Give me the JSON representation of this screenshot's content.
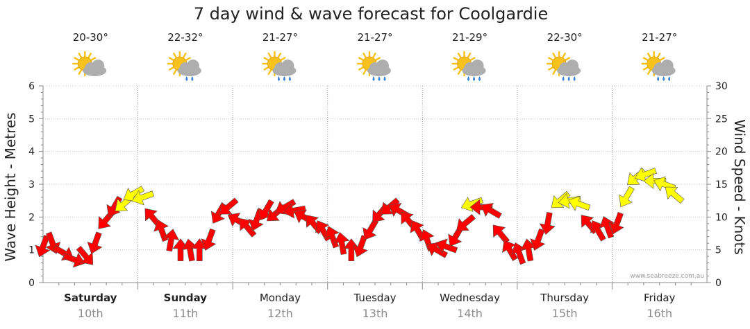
{
  "chart_data": {
    "type": "line",
    "title": "7 day wind & wave forecast for Coolgardie",
    "y_left": {
      "label": "Wave Height - Metres",
      "range": [
        0,
        6
      ],
      "ticks": [
        "0",
        "1",
        "2",
        "3",
        "4",
        "5",
        "6"
      ]
    },
    "y_right": {
      "label": "Wind Speed - Knots",
      "range": [
        0,
        30
      ],
      "ticks": [
        "0",
        "5",
        "10",
        "15",
        "20",
        "25",
        "30"
      ]
    },
    "grid": true,
    "days": [
      {
        "name": "Saturday",
        "date": "10th",
        "bold": true,
        "temp": "20-30°",
        "weather": "partly-cloudy-icon"
      },
      {
        "name": "Sunday",
        "date": "11th",
        "bold": true,
        "temp": "22-32°",
        "weather": "cloudy-drizzle-icon"
      },
      {
        "name": "Monday",
        "date": "12th",
        "bold": false,
        "temp": "21-27°",
        "weather": "shower-icon"
      },
      {
        "name": "Tuesday",
        "date": "13th",
        "bold": false,
        "temp": "21-27°",
        "weather": "shower-icon"
      },
      {
        "name": "Wednesday",
        "date": "14th",
        "bold": false,
        "temp": "21-29°",
        "weather": "shower-icon"
      },
      {
        "name": "Thursday",
        "date": "15th",
        "bold": false,
        "temp": "22-30°",
        "weather": "shower-icon"
      },
      {
        "name": "Friday",
        "date": "16th",
        "bold": false,
        "temp": "21-27°",
        "weather": "shower-icon"
      }
    ],
    "wind_series": {
      "name": "Wind Speed (knots)",
      "colors": {
        "light": "#ffff00",
        "strong": "#ff0000"
      },
      "points": [
        {
          "t": 0.0,
          "speed": 5.5,
          "dir": 200,
          "color": "red"
        },
        {
          "t": 0.1,
          "speed": 6.0,
          "dir": 160,
          "color": "red"
        },
        {
          "t": 0.22,
          "speed": 4.5,
          "dir": 120,
          "color": "red"
        },
        {
          "t": 0.33,
          "speed": 3.5,
          "dir": 110,
          "color": "red"
        },
        {
          "t": 0.45,
          "speed": 4.0,
          "dir": 140,
          "color": "red"
        },
        {
          "t": 0.55,
          "speed": 6.0,
          "dir": 200,
          "color": "red"
        },
        {
          "t": 0.66,
          "speed": 9.5,
          "dir": 220,
          "color": "red"
        },
        {
          "t": 0.75,
          "speed": 11.5,
          "dir": 210,
          "color": "red"
        },
        {
          "t": 0.85,
          "speed": 12.0,
          "dir": 230,
          "color": "yellow"
        },
        {
          "t": 0.95,
          "speed": 13.5,
          "dir": 240,
          "color": "yellow"
        },
        {
          "t": 1.05,
          "speed": 13.0,
          "dir": 250,
          "color": "yellow"
        },
        {
          "t": 1.15,
          "speed": 10.0,
          "dir": 320,
          "color": "red"
        },
        {
          "t": 1.25,
          "speed": 8.0,
          "dir": 340,
          "color": "red"
        },
        {
          "t": 1.35,
          "speed": 6.5,
          "dir": 10,
          "color": "red"
        },
        {
          "t": 1.45,
          "speed": 5.0,
          "dir": 0,
          "color": "red"
        },
        {
          "t": 1.55,
          "speed": 5.0,
          "dir": 350,
          "color": "red"
        },
        {
          "t": 1.65,
          "speed": 5.0,
          "dir": 0,
          "color": "red"
        },
        {
          "t": 1.75,
          "speed": 6.5,
          "dir": 200,
          "color": "red"
        },
        {
          "t": 1.85,
          "speed": 10.5,
          "dir": 210,
          "color": "red"
        },
        {
          "t": 1.95,
          "speed": 11.5,
          "dir": 230,
          "color": "red"
        },
        {
          "t": 2.05,
          "speed": 9.5,
          "dir": 300,
          "color": "red"
        },
        {
          "t": 2.15,
          "speed": 8.5,
          "dir": 320,
          "color": "red"
        },
        {
          "t": 2.25,
          "speed": 9.5,
          "dir": 200,
          "color": "red"
        },
        {
          "t": 2.35,
          "speed": 11.0,
          "dir": 210,
          "color": "red"
        },
        {
          "t": 2.45,
          "speed": 10.5,
          "dir": 230,
          "color": "red"
        },
        {
          "t": 2.55,
          "speed": 11.5,
          "dir": 240,
          "color": "red"
        },
        {
          "t": 2.65,
          "speed": 11.0,
          "dir": 260,
          "color": "red"
        },
        {
          "t": 2.75,
          "speed": 10.0,
          "dir": 300,
          "color": "red"
        },
        {
          "t": 2.85,
          "speed": 9.0,
          "dir": 320,
          "color": "red"
        },
        {
          "t": 2.95,
          "speed": 8.0,
          "dir": 330,
          "color": "red"
        },
        {
          "t": 3.05,
          "speed": 7.0,
          "dir": 340,
          "color": "red"
        },
        {
          "t": 3.15,
          "speed": 6.0,
          "dir": 350,
          "color": "red"
        },
        {
          "t": 3.25,
          "speed": 5.0,
          "dir": 0,
          "color": "red"
        },
        {
          "t": 3.35,
          "speed": 5.5,
          "dir": 200,
          "color": "red"
        },
        {
          "t": 3.45,
          "speed": 8.0,
          "dir": 210,
          "color": "red"
        },
        {
          "t": 3.55,
          "speed": 10.5,
          "dir": 220,
          "color": "red"
        },
        {
          "t": 3.65,
          "speed": 11.5,
          "dir": 230,
          "color": "red"
        },
        {
          "t": 3.75,
          "speed": 11.0,
          "dir": 300,
          "color": "red"
        },
        {
          "t": 3.85,
          "speed": 9.5,
          "dir": 320,
          "color": "red"
        },
        {
          "t": 3.95,
          "speed": 8.0,
          "dir": 330,
          "color": "red"
        },
        {
          "t": 4.05,
          "speed": 6.5,
          "dir": 340,
          "color": "red"
        },
        {
          "t": 4.15,
          "speed": 5.0,
          "dir": 300,
          "color": "red"
        },
        {
          "t": 4.25,
          "speed": 5.5,
          "dir": 290,
          "color": "red"
        },
        {
          "t": 4.35,
          "speed": 7.0,
          "dir": 210,
          "color": "red"
        },
        {
          "t": 4.45,
          "speed": 9.0,
          "dir": 230,
          "color": "red"
        },
        {
          "t": 4.52,
          "speed": 12.0,
          "dir": 250,
          "color": "yellow"
        },
        {
          "t": 4.62,
          "speed": 11.5,
          "dir": 270,
          "color": "red"
        },
        {
          "t": 4.72,
          "speed": 11.0,
          "dir": 300,
          "color": "red"
        },
        {
          "t": 4.82,
          "speed": 7.5,
          "dir": 320,
          "color": "red"
        },
        {
          "t": 4.92,
          "speed": 5.0,
          "dir": 330,
          "color": "red"
        },
        {
          "t": 5.02,
          "speed": 4.5,
          "dir": 340,
          "color": "red"
        },
        {
          "t": 5.12,
          "speed": 5.0,
          "dir": 350,
          "color": "red"
        },
        {
          "t": 5.22,
          "speed": 6.5,
          "dir": 200,
          "color": "red"
        },
        {
          "t": 5.32,
          "speed": 9.0,
          "dir": 190,
          "color": "red"
        },
        {
          "t": 5.45,
          "speed": 12.5,
          "dir": 230,
          "color": "yellow"
        },
        {
          "t": 5.55,
          "speed": 12.5,
          "dir": 260,
          "color": "yellow"
        },
        {
          "t": 5.65,
          "speed": 12.0,
          "dir": 290,
          "color": "yellow"
        },
        {
          "t": 5.75,
          "speed": 9.0,
          "dir": 320,
          "color": "red"
        },
        {
          "t": 5.85,
          "speed": 8.0,
          "dir": 330,
          "color": "red"
        },
        {
          "t": 5.95,
          "speed": 8.5,
          "dir": 340,
          "color": "red"
        },
        {
          "t": 6.05,
          "speed": 9.0,
          "dir": 200,
          "color": "red"
        },
        {
          "t": 6.15,
          "speed": 13.0,
          "dir": 210,
          "color": "yellow"
        },
        {
          "t": 6.25,
          "speed": 16.0,
          "dir": 230,
          "color": "yellow"
        },
        {
          "t": 6.35,
          "speed": 16.5,
          "dir": 250,
          "color": "yellow"
        },
        {
          "t": 6.45,
          "speed": 15.5,
          "dir": 270,
          "color": "yellow"
        },
        {
          "t": 6.55,
          "speed": 15.0,
          "dir": 290,
          "color": "yellow"
        },
        {
          "t": 6.65,
          "speed": 13.5,
          "dir": 310,
          "color": "yellow"
        }
      ]
    },
    "wave_series": {
      "name": "Wave Height (m)",
      "values": []
    }
  },
  "watermark": "www.seabreeze.com.au",
  "colors": {
    "grid": "#c8c8c8",
    "axis": "#888888",
    "wind_light": "#ffff00",
    "wind_strong": "#ff0000",
    "sun": "#f6c21b",
    "cloud": "#9a9a9a",
    "rain": "#3a84d6"
  }
}
